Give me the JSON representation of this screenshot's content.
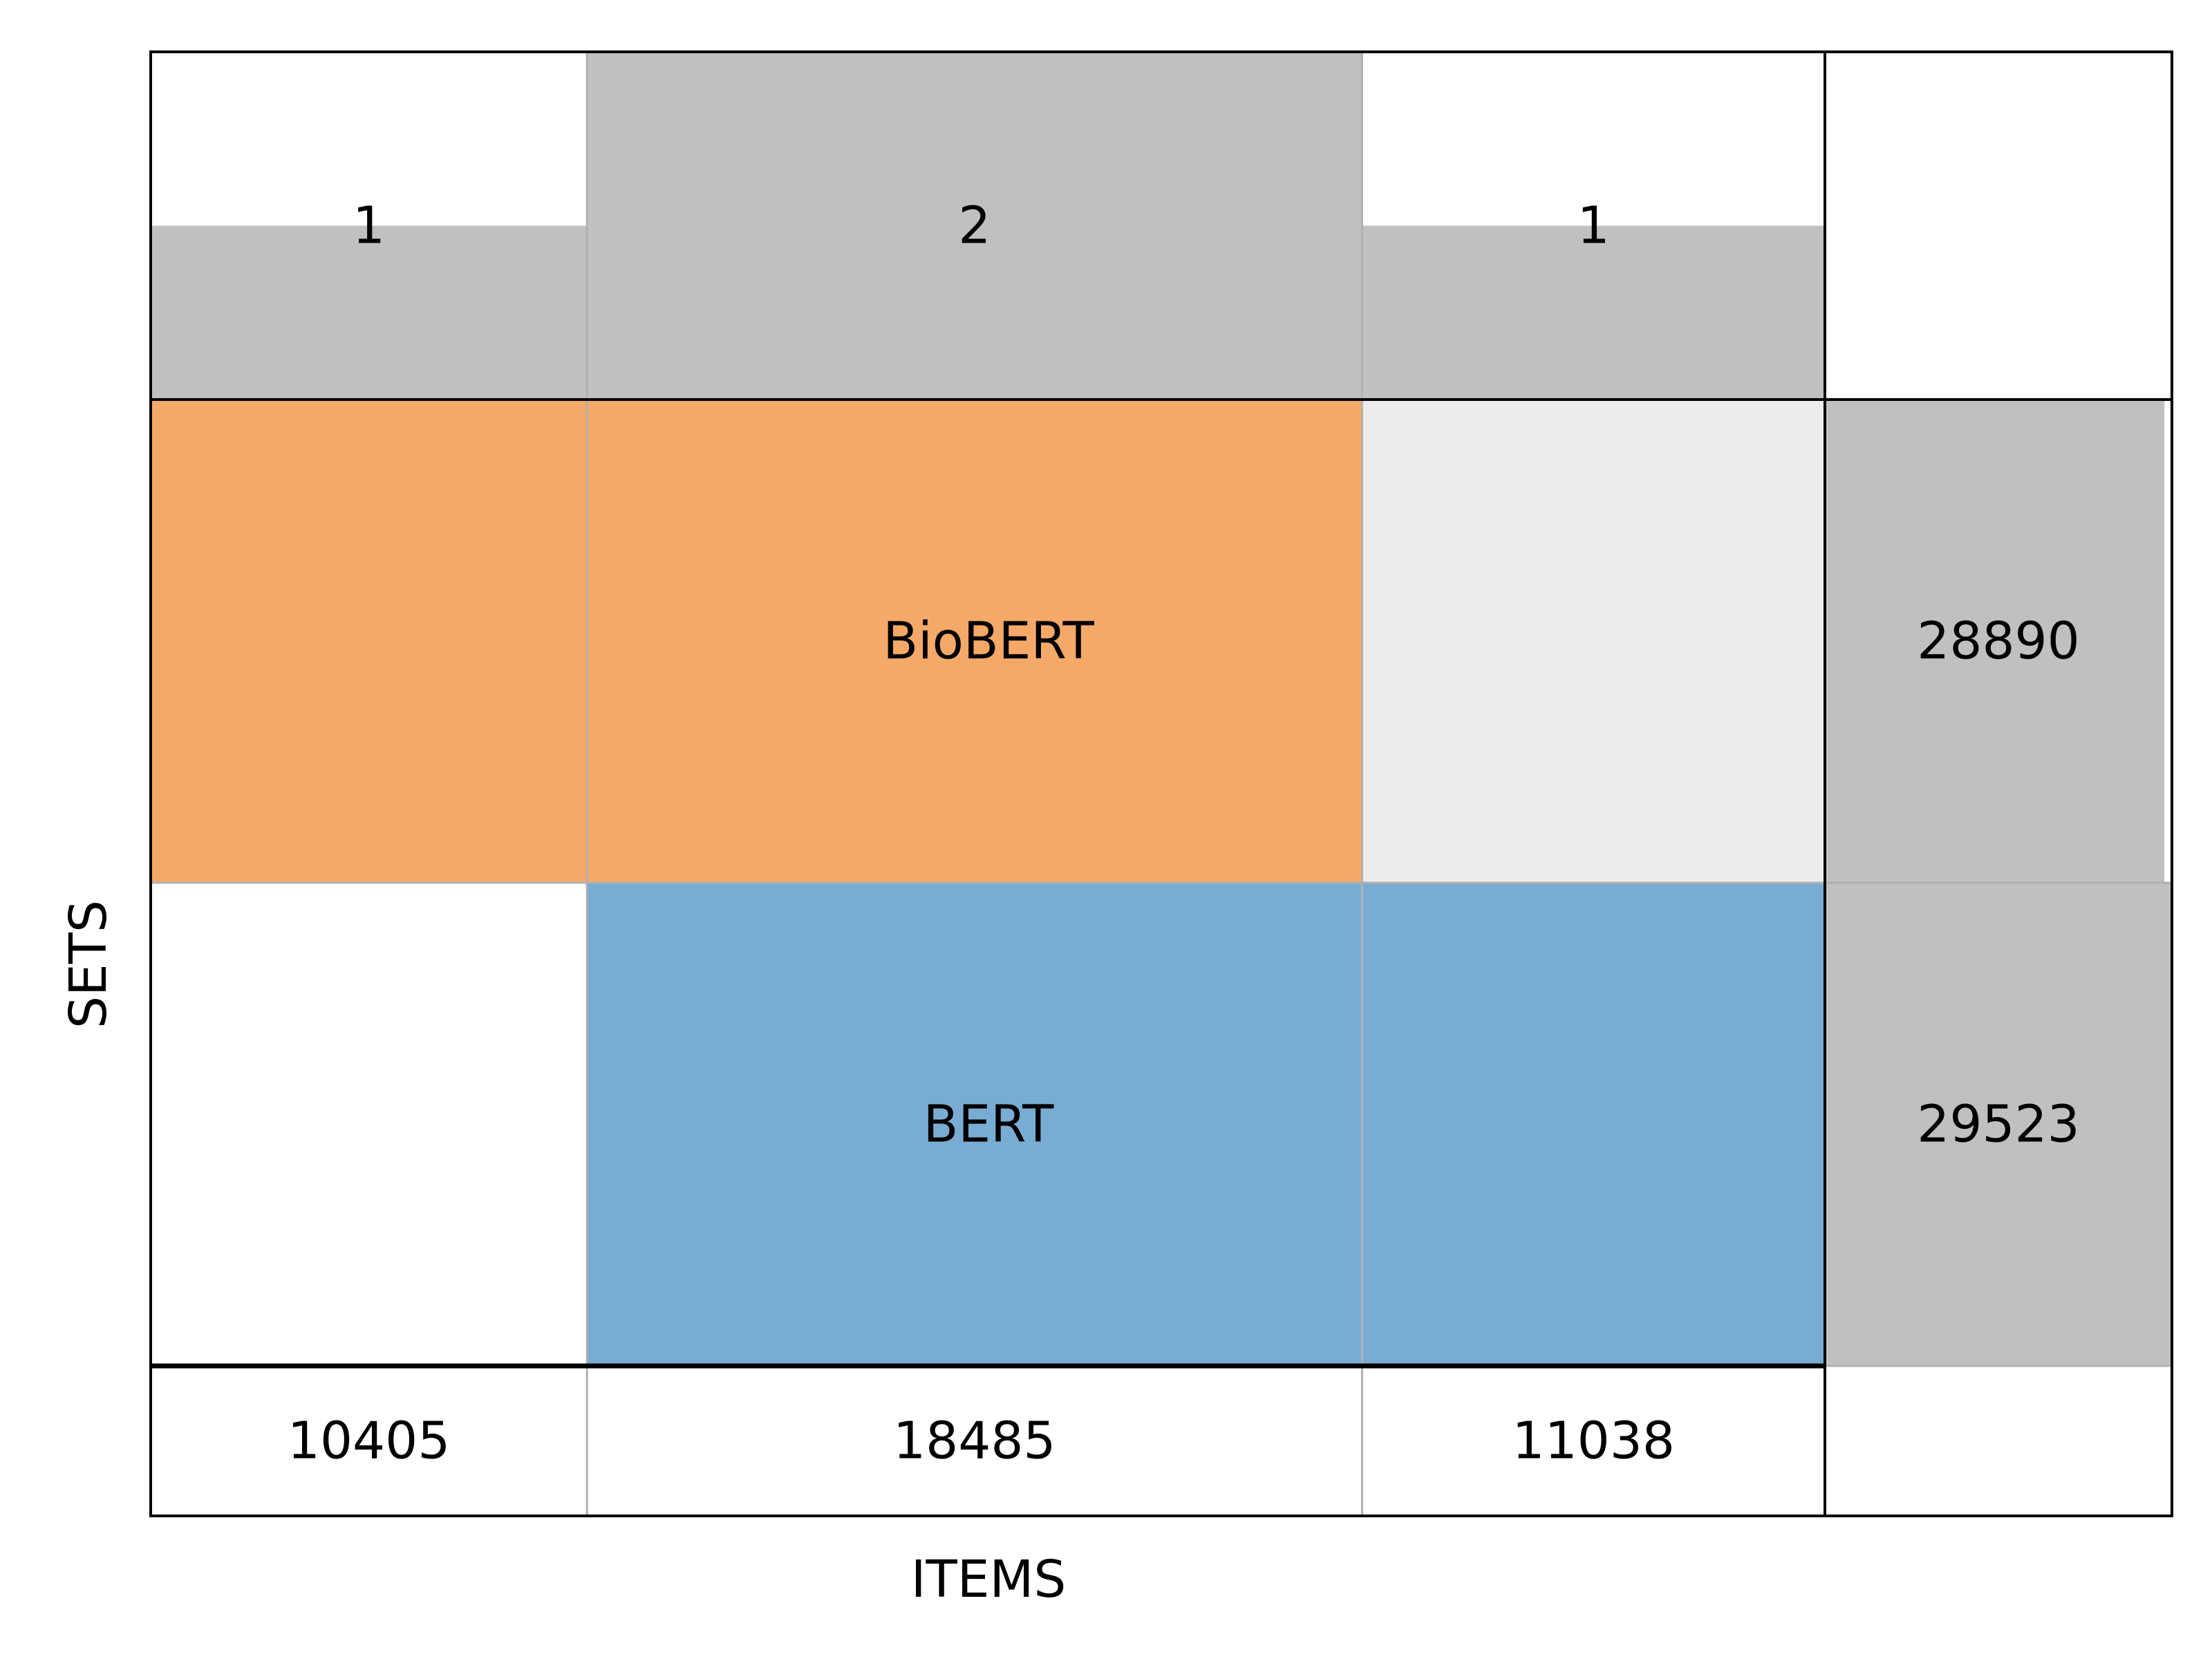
{
  "chart_data": {
    "type": "heatmap",
    "subtype": "set-intersection diagram",
    "xlabel": "ITEMS",
    "ylabel": "SETS",
    "sets": [
      {
        "name": "BioBERT",
        "size": 28890,
        "color": "#f5a968"
      },
      {
        "name": "BERT",
        "size": 29523,
        "color": "#79acd2"
      }
    ],
    "columns": [
      {
        "count": 10405,
        "degree": 1,
        "members": [
          "BioBERT"
        ]
      },
      {
        "count": 18485,
        "degree": 2,
        "members": [
          "BioBERT",
          "BERT"
        ]
      },
      {
        "count": 11038,
        "degree": 1,
        "members": [
          "BERT"
        ]
      }
    ],
    "degree_max": 2,
    "colors": {
      "bar": "#c0c0c0",
      "empty_cell": "#ececec",
      "grid": "#b0b0b0",
      "frame": "#000000"
    }
  }
}
